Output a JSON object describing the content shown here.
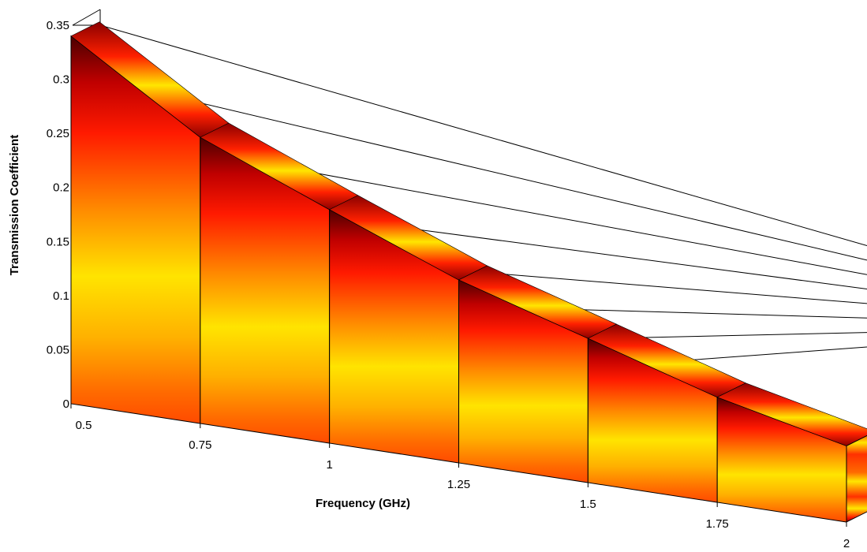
{
  "chart_data": {
    "type": "area",
    "style": "3d-ribbon",
    "title": "",
    "xlabel": "Frequency (GHz)",
    "ylabel": "Transmission Coefficient",
    "x": [
      0.5,
      0.75,
      1,
      1.25,
      1.5,
      1.75,
      2
    ],
    "x_tick_labels": [
      "0.5",
      "0.75",
      "1",
      "1.25",
      "1.5",
      "1.75",
      "2"
    ],
    "values": [
      0.34,
      0.27,
      0.225,
      0.18,
      0.145,
      0.108,
      0.08
    ],
    "y_ticks": [
      0,
      0.05,
      0.1,
      0.15,
      0.2,
      0.25,
      0.3,
      0.35
    ],
    "y_tick_labels": [
      "0",
      "0.05",
      "0.1",
      "0.15",
      "0.2",
      "0.25",
      "0.3",
      "0.35"
    ],
    "xlim": [
      0.5,
      2
    ],
    "ylim": [
      0,
      0.35
    ],
    "grid": true,
    "colormap": "hot"
  }
}
